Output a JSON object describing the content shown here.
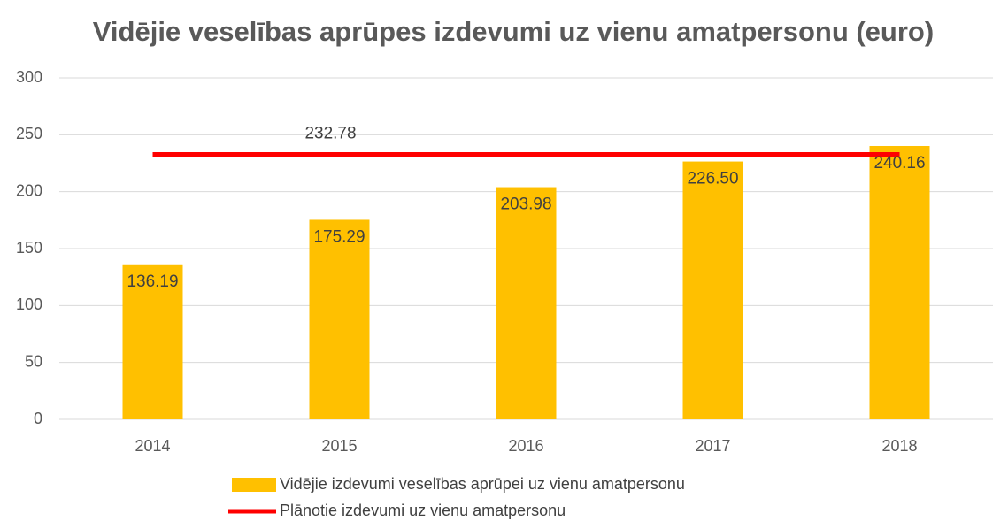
{
  "chart_data": {
    "type": "bar",
    "title": "Vidējie veselības aprūpes izdevumi uz vienu amatpersonu (euro)",
    "categories": [
      "2014",
      "2015",
      "2016",
      "2017",
      "2018"
    ],
    "series": [
      {
        "name": "Vidējie izdevumi veselības aprūpei uz vienu amatpersonu",
        "type": "bar",
        "color": "#ffc000",
        "values": [
          136.19,
          175.29,
          203.98,
          226.5,
          240.16
        ],
        "value_labels": [
          "136.19",
          "175.29",
          "203.98",
          "226.50",
          "240.16"
        ]
      },
      {
        "name": "Plānotie izdevumi uz vienu amatpersonu",
        "type": "line",
        "color": "#ff0000",
        "values": [
          232.78,
          232.78,
          232.78,
          232.78,
          232.78
        ],
        "value_labels": [
          null,
          "232.78",
          null,
          null,
          null
        ]
      }
    ],
    "ylim": [
      0,
      300
    ],
    "yticks": [
      0,
      50,
      100,
      150,
      200,
      250,
      300
    ],
    "grid": true
  }
}
